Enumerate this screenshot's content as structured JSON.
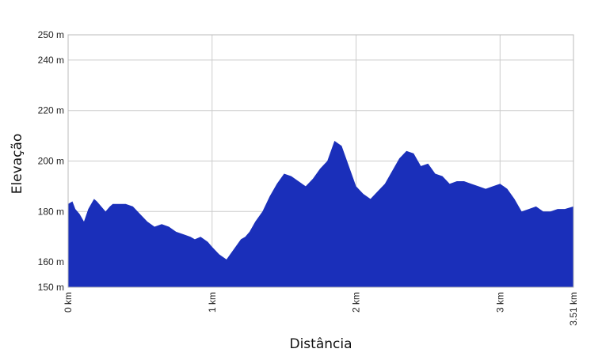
{
  "chart_data": {
    "type": "area",
    "xlabel": "Distância",
    "ylabel": "Elevação",
    "xlim": [
      0,
      3.51
    ],
    "ylim": [
      150,
      250
    ],
    "x_unit": "km",
    "y_unit": "m",
    "x_ticks": [
      {
        "value": 0,
        "label": "0 km"
      },
      {
        "value": 1,
        "label": "1 km"
      },
      {
        "value": 2,
        "label": "2 km"
      },
      {
        "value": 3,
        "label": "3 km"
      },
      {
        "value": 3.51,
        "label": "3.51 km"
      }
    ],
    "y_ticks": [
      {
        "value": 150,
        "label": "150 m"
      },
      {
        "value": 160,
        "label": "160 m"
      },
      {
        "value": 180,
        "label": "180 m"
      },
      {
        "value": 200,
        "label": "200 m"
      },
      {
        "value": 220,
        "label": "220 m"
      },
      {
        "value": 240,
        "label": "240 m"
      },
      {
        "value": 250,
        "label": "250 m"
      }
    ],
    "grid": true,
    "fill_color": "#1a2fba",
    "grid_color": "#cccccc",
    "series": [
      {
        "x": [
          0,
          0.03,
          0.05,
          0.08,
          0.11,
          0.14,
          0.18,
          0.2,
          0.23,
          0.26,
          0.29,
          0.31,
          0.35,
          0.4,
          0.45,
          0.5,
          0.55,
          0.6,
          0.65,
          0.7,
          0.75,
          0.8,
          0.85,
          0.88,
          0.92,
          0.97,
          1.0,
          1.05,
          1.1,
          1.15,
          1.2,
          1.23,
          1.26,
          1.3,
          1.35,
          1.4,
          1.45,
          1.5,
          1.55,
          1.6,
          1.65,
          1.7,
          1.75,
          1.8,
          1.85,
          1.9,
          1.95,
          2.0,
          2.05,
          2.1,
          2.15,
          2.2,
          2.25,
          2.3,
          2.35,
          2.4,
          2.45,
          2.5,
          2.55,
          2.6,
          2.65,
          2.7,
          2.75,
          2.8,
          2.85,
          2.9,
          2.95,
          3.0,
          3.05,
          3.1,
          3.15,
          3.2,
          3.25,
          3.3,
          3.35,
          3.4,
          3.45,
          3.51
        ],
        "y": [
          183,
          184,
          181,
          179,
          176,
          181,
          185,
          184,
          182,
          180,
          182,
          183,
          183,
          183,
          182,
          179,
          176,
          174,
          175,
          174,
          172,
          171,
          170,
          169,
          170,
          168,
          166,
          163,
          161,
          165,
          169,
          170,
          172,
          176,
          180,
          186,
          191,
          195,
          194,
          192,
          190,
          193,
          197,
          200,
          208,
          206,
          198,
          190,
          187,
          185,
          188,
          191,
          196,
          201,
          204,
          203,
          198,
          199,
          195,
          194,
          191,
          192,
          192,
          191,
          190,
          189,
          190,
          191,
          189,
          185,
          180,
          181,
          182,
          180,
          180,
          181,
          181,
          182
        ]
      }
    ]
  }
}
